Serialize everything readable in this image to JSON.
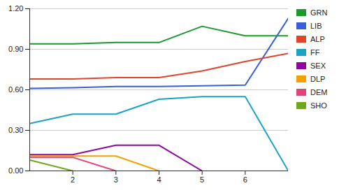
{
  "chart_data": {
    "type": "line",
    "x": [
      1,
      2,
      3,
      4,
      5,
      6,
      7
    ],
    "xlim": [
      1,
      7
    ],
    "xticks": [
      2,
      3,
      4,
      5,
      6
    ],
    "ylim": [
      0,
      1.2
    ],
    "yticks": [
      {
        "value": 0,
        "label": "0.00"
      },
      {
        "value": 0.3,
        "label": "0.30"
      },
      {
        "value": 0.6,
        "label": "0.60"
      },
      {
        "value": 0.9,
        "label": "0.90"
      },
      {
        "value": 1.2,
        "label": "1.20"
      }
    ],
    "grid": true,
    "legend": "top-right",
    "series": [
      {
        "name": "GRN",
        "color": "#1a9a2a",
        "values": [
          0.94,
          0.94,
          0.95,
          0.95,
          1.07,
          1.0,
          1.0
        ]
      },
      {
        "name": "LIB",
        "color": "#3a5ed6",
        "values": [
          0.61,
          0.615,
          0.625,
          0.625,
          0.63,
          0.635,
          1.13
        ]
      },
      {
        "name": "ALP",
        "color": "#e0452a",
        "values": [
          0.68,
          0.68,
          0.69,
          0.69,
          0.74,
          0.81,
          0.87
        ]
      },
      {
        "name": "FF",
        "color": "#1ba3c6",
        "values": [
          0.35,
          0.42,
          0.42,
          0.53,
          0.55,
          0.55,
          0.0
        ]
      },
      {
        "name": "SEX",
        "color": "#8e0a9e",
        "values": [
          0.12,
          0.12,
          0.19,
          0.19,
          0.0,
          null,
          null
        ]
      },
      {
        "name": "DLP",
        "color": "#f5a000",
        "values": [
          0.11,
          0.11,
          0.11,
          0.0,
          null,
          null,
          null
        ]
      },
      {
        "name": "DEM",
        "color": "#e0457a",
        "values": [
          0.1,
          0.1,
          0.0,
          null,
          null,
          null,
          null
        ]
      },
      {
        "name": "SHO",
        "color": "#6fa81a",
        "values": [
          0.08,
          0.0,
          null,
          null,
          null,
          null,
          null
        ]
      }
    ]
  }
}
